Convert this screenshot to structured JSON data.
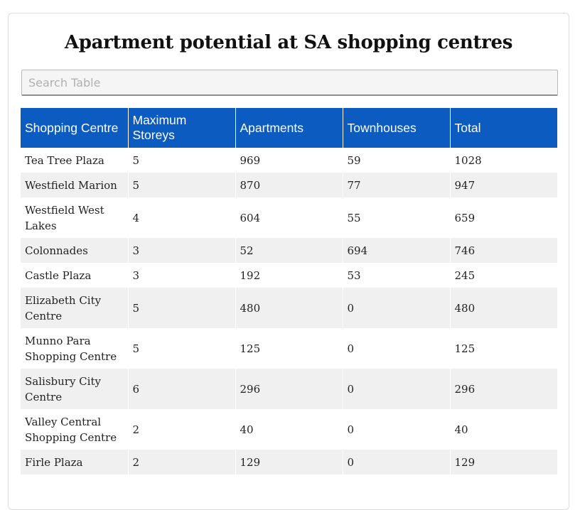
{
  "title": "Apartment potential at SA shopping centres",
  "search": {
    "placeholder": "Search Table"
  },
  "table": {
    "headers": [
      "Shopping Centre",
      "Maximum Storeys",
      "Apartments",
      "Townhouses",
      "Total"
    ],
    "rows": [
      [
        "Tea Tree Plaza",
        "5",
        "969",
        "59",
        "1028"
      ],
      [
        "Westfield Marion",
        "5",
        "870",
        "77",
        "947"
      ],
      [
        "Westfield West Lakes",
        "4",
        "604",
        "55",
        "659"
      ],
      [
        "Colonnades",
        "3",
        "52",
        "694",
        "746"
      ],
      [
        "Castle Plaza",
        "3",
        "192",
        "53",
        "245"
      ],
      [
        "Elizabeth City Centre",
        "5",
        "480",
        "0",
        "480"
      ],
      [
        "Munno Para Shopping Centre",
        "5",
        "125",
        "0",
        "125"
      ],
      [
        "Salisbury City Centre",
        "6",
        "296",
        "0",
        "296"
      ],
      [
        "Valley Central Shopping Centre",
        "2",
        "40",
        "0",
        "40"
      ],
      [
        "Firle Plaza",
        "2",
        "129",
        "0",
        "129"
      ]
    ]
  },
  "colors": {
    "header_bg": "#0b5bc0",
    "header_text": "#ffffff",
    "stripe": "#f0f0f0"
  }
}
